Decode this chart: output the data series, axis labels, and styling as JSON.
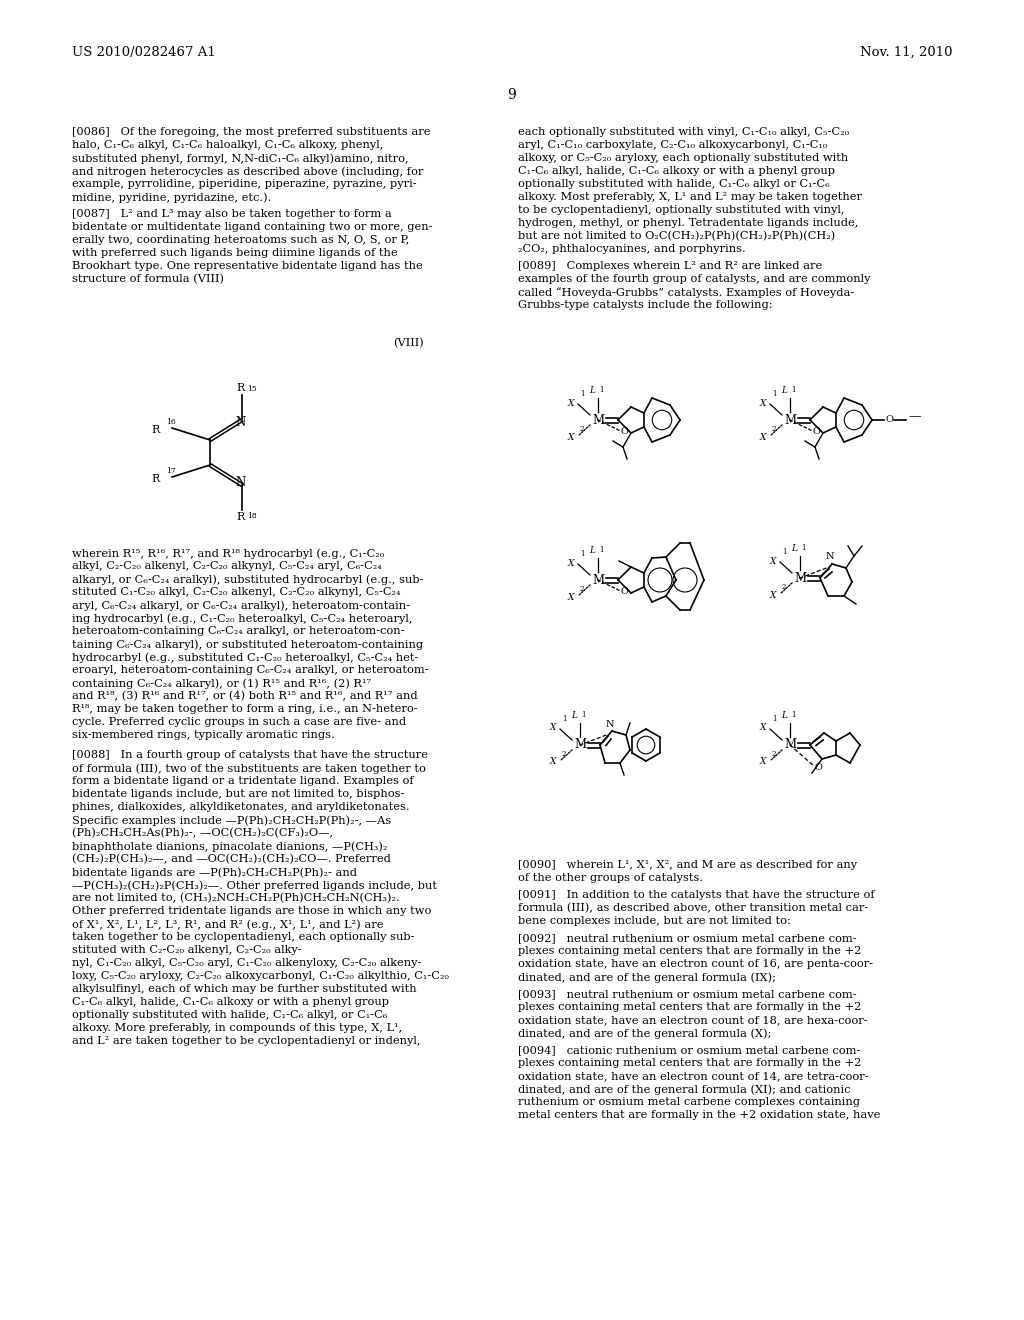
{
  "bg": "#ffffff",
  "header_left": "US 2010/0282467 A1",
  "header_right": "Nov. 11, 2010",
  "page_num": "9"
}
